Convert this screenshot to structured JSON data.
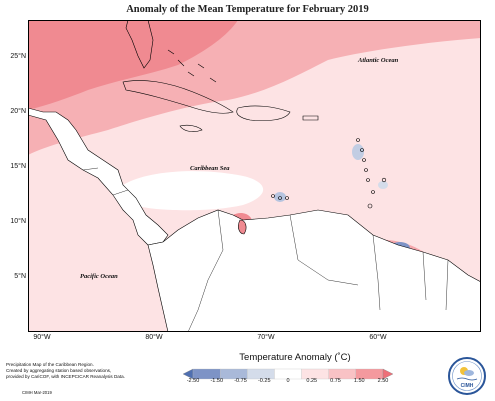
{
  "title": "Anomaly of the Mean Temperature for February 2019",
  "map": {
    "ocean_labels": [
      "Atlantic Ocean",
      "Caribbean Sea",
      "Pacific Ocean"
    ],
    "lat_labels": [
      "25°N",
      "20°N",
      "15°N",
      "10°N",
      "5°N"
    ],
    "lon_labels": [
      "90°W",
      "80°W",
      "70°W",
      "60°W"
    ]
  },
  "legend": {
    "title": "Temperature Anomaly (˚C)",
    "ticks": [
      "-2.50",
      "-1.50",
      "-0.75",
      "-0.25",
      "0",
      "0.25",
      "0.75",
      "1.50",
      "2.50"
    ],
    "colors": [
      "#4f6fb0",
      "#7d93c6",
      "#a9b9d9",
      "#d4dcea",
      "#ffffff",
      "#fde3e4",
      "#f9c2c5",
      "#f4999e",
      "#ee6f78"
    ]
  },
  "footer": {
    "lines": [
      "Precipitation Map of the Caribbean Region.",
      "Created by aggregating station based observations,",
      "provided by CariCOF, with INCEPCICAR Reanalysis Data."
    ],
    "date": "CIMH Mar-2019"
  },
  "logo": {
    "text": "CIMH",
    "icon": "sun-cloud-icon"
  }
}
